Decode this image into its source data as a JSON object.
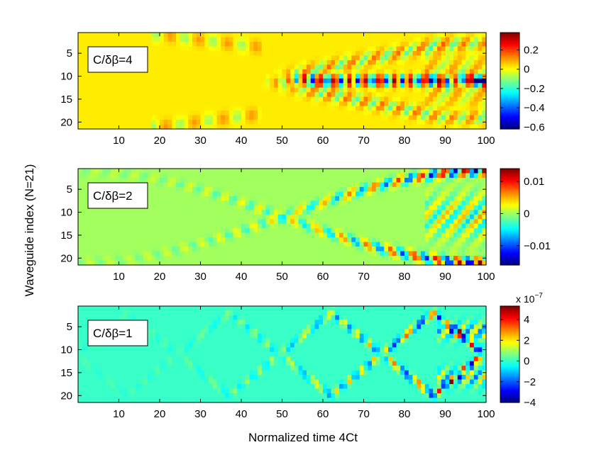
{
  "figure": {
    "ylabel": "Waveguide index (N=21)",
    "xlabel": "Normalized time 4Ct"
  },
  "chart_data": [
    {
      "type": "heatmap",
      "label": "C/δβ=4",
      "x_ticks": [
        "10",
        "20",
        "30",
        "40",
        "50",
        "60",
        "70",
        "80",
        "90",
        "100"
      ],
      "y_ticks": [
        "5",
        "10",
        "15",
        "20"
      ],
      "xlim": [
        0,
        100
      ],
      "ylim": [
        1,
        21
      ],
      "colorbar": {
        "ticks": [
          "0.2",
          "0",
          "−0.2",
          "−0.4",
          "−0.6"
        ],
        "tick_values": [
          0.2,
          0,
          -0.2,
          -0.4,
          -0.6
        ],
        "range": [
          -0.62,
          0.38
        ],
        "exponent": ""
      },
      "pattern": "focusing",
      "colormap": "jet"
    },
    {
      "type": "heatmap",
      "label": "C/δβ=2",
      "x_ticks": [
        "10",
        "20",
        "30",
        "40",
        "50",
        "60",
        "70",
        "80",
        "90",
        "100"
      ],
      "y_ticks": [
        "5",
        "10",
        "15",
        "20"
      ],
      "xlim": [
        0,
        100
      ],
      "ylim": [
        1,
        21
      ],
      "colorbar": {
        "ticks": [
          "0.01",
          "0",
          "−0.01"
        ],
        "tick_values": [
          0.01,
          0,
          -0.01
        ],
        "range": [
          -0.016,
          0.014
        ],
        "exponent": ""
      },
      "pattern": "crossing",
      "colormap": "jet"
    },
    {
      "type": "heatmap",
      "label": "C/δβ=1",
      "x_ticks": [
        "10",
        "20",
        "30",
        "40",
        "50",
        "60",
        "70",
        "80",
        "90",
        "100"
      ],
      "y_ticks": [
        "5",
        "10",
        "15",
        "20"
      ],
      "xlim": [
        0,
        100
      ],
      "ylim": [
        1,
        21
      ],
      "colorbar": {
        "ticks": [
          "4",
          "2",
          "0",
          "−2",
          "−4"
        ],
        "tick_values": [
          4,
          2,
          0,
          -2,
          -4
        ],
        "range": [
          -4,
          5.3
        ],
        "exponent": "x 10",
        "exponent_power": "−7"
      },
      "pattern": "diamonds",
      "colormap": "jet"
    }
  ]
}
